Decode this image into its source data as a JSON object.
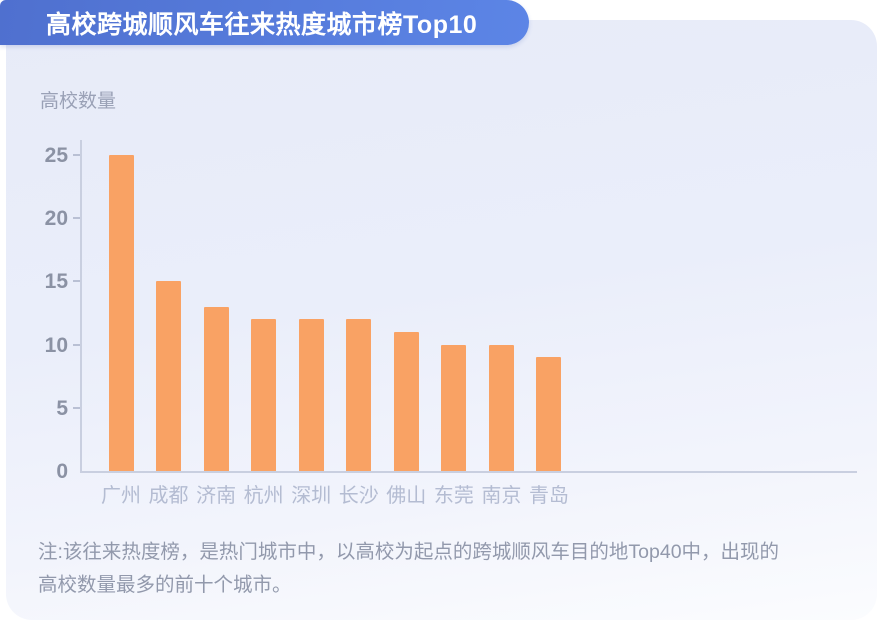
{
  "header": {
    "title": "高校跨城顺风车往来热度城市榜Top10"
  },
  "chart_data": {
    "type": "bar",
    "title": "高校跨城顺风车往来热度城市榜Top10",
    "ylabel": "高校数量",
    "xlabel": "",
    "categories": [
      "广州",
      "成都",
      "济南",
      "杭州",
      "深圳",
      "长沙",
      "佛山",
      "东莞",
      "南京",
      "青岛"
    ],
    "values": [
      25,
      15,
      13,
      12,
      12,
      12,
      11,
      10,
      10,
      9
    ],
    "yticks": [
      0,
      5,
      10,
      15,
      20,
      25
    ],
    "ylim": [
      0,
      25
    ],
    "grid": "off",
    "legend": "none",
    "bar_color": "#F9A264"
  },
  "note": {
    "lines": [
      "注:该往来热度榜，是热门城市中，以高校为起点的跨城顺风车目的地Top40中，出现的",
      "高校数量最多的前十个城市。"
    ]
  },
  "colors": {
    "banner_blue_start": "#4f70cf",
    "banner_blue_end": "#5c85e6",
    "card_background_top": "#e7ebf8",
    "card_background_bottom": "#fbfcfe",
    "bar_orange": "#F9A264",
    "axis_gray": "#c9cfe0",
    "tick_label_gray": "#8b92a4",
    "category_label_gray": "#b4bcd2",
    "note_gray": "#9299ac",
    "ylabel_gray": "#9aa1b6"
  }
}
